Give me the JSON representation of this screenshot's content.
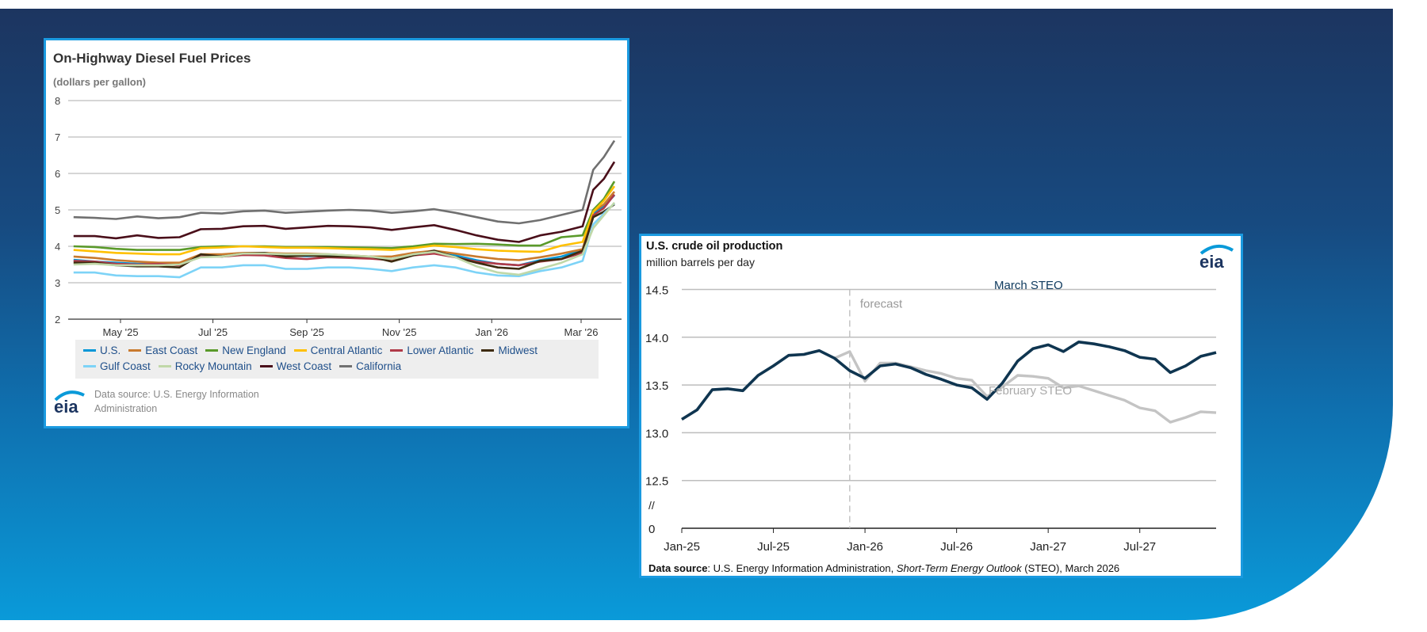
{
  "left_chart_panel": {
    "title": "On-Highway Diesel Fuel Prices",
    "unit": "(dollars per gallon)",
    "source": "Data source: U.S. Energy Information Administration",
    "logo_text": "eia"
  },
  "right_chart_panel": {
    "title": "U.S. crude oil production",
    "unit": "million barrels per day",
    "source_bold": "Data source",
    "source_pre": ": U.S. Energy Information Administration, ",
    "source_italic": "Short-Term Energy Outlook",
    "source_post": " (STEO), March 2026",
    "logo_text": "eia"
  },
  "chart_data": [
    {
      "type": "line",
      "title": "On-Highway Diesel Fuel Prices",
      "ylabel": "(dollars per gallon)",
      "ylim": [
        2,
        8
      ],
      "yticks": [
        "2",
        "3",
        "4",
        "5",
        "6",
        "7",
        "8"
      ],
      "xticks": [
        {
          "label": "May '25",
          "date": "2025-05-01"
        },
        {
          "label": "Jul '25",
          "date": "2025-07-01"
        },
        {
          "label": "Sep '25",
          "date": "2025-09-01"
        },
        {
          "label": "Nov '25",
          "date": "2025-11-01"
        },
        {
          "label": "Jan '26",
          "date": "2026-01-01"
        },
        {
          "label": "Mar '26",
          "date": "2026-03-01"
        }
      ],
      "grid": true,
      "legend_position": "bottom",
      "x": [
        "2025-03-31",
        "2025-04-14",
        "2025-04-28",
        "2025-05-12",
        "2025-05-26",
        "2025-06-09",
        "2025-06-23",
        "2025-07-07",
        "2025-07-21",
        "2025-08-04",
        "2025-08-18",
        "2025-09-01",
        "2025-09-15",
        "2025-09-29",
        "2025-10-13",
        "2025-10-27",
        "2025-11-10",
        "2025-11-24",
        "2025-12-08",
        "2025-12-22",
        "2026-01-05",
        "2026-01-19",
        "2026-02-02",
        "2026-02-16",
        "2026-03-02",
        "2026-03-09",
        "2026-03-16",
        "2026-03-23"
      ],
      "series": [
        {
          "name": "U.S.",
          "color": "#0096d7",
          "values": [
            3.63,
            3.58,
            3.55,
            3.52,
            3.52,
            3.5,
            3.75,
            3.75,
            3.8,
            3.8,
            3.75,
            3.73,
            3.75,
            3.72,
            3.68,
            3.65,
            3.78,
            3.88,
            3.75,
            3.62,
            3.52,
            3.48,
            3.62,
            3.72,
            3.9,
            4.88,
            5.1,
            5.4
          ]
        },
        {
          "name": "East Coast",
          "color": "#c97a2e",
          "values": [
            3.72,
            3.68,
            3.62,
            3.58,
            3.55,
            3.55,
            3.78,
            3.78,
            3.82,
            3.82,
            3.8,
            3.8,
            3.78,
            3.75,
            3.72,
            3.72,
            3.82,
            3.88,
            3.8,
            3.72,
            3.65,
            3.62,
            3.7,
            3.8,
            3.92,
            4.95,
            5.15,
            5.5
          ]
        },
        {
          "name": "New England",
          "color": "#5a9a2a",
          "values": [
            4.0,
            3.98,
            3.93,
            3.9,
            3.9,
            3.9,
            3.98,
            4.0,
            4.0,
            4.0,
            3.98,
            3.98,
            3.98,
            3.97,
            3.96,
            3.95,
            4.0,
            4.07,
            4.06,
            4.07,
            4.05,
            4.02,
            4.02,
            4.25,
            4.3,
            5.0,
            5.3,
            5.78
          ]
        },
        {
          "name": "Central Atlantic",
          "color": "#ffc000",
          "values": [
            3.9,
            3.86,
            3.82,
            3.8,
            3.78,
            3.78,
            3.95,
            3.97,
            4.0,
            3.98,
            3.96,
            3.96,
            3.95,
            3.93,
            3.92,
            3.9,
            3.95,
            4.02,
            3.98,
            3.92,
            3.88,
            3.86,
            3.85,
            4.02,
            4.12,
            4.95,
            5.25,
            5.65
          ]
        },
        {
          "name": "Lower Atlantic",
          "color": "#b03a48",
          "values": [
            3.6,
            3.58,
            3.52,
            3.5,
            3.52,
            3.48,
            3.72,
            3.72,
            3.76,
            3.75,
            3.68,
            3.65,
            3.7,
            3.68,
            3.66,
            3.62,
            3.75,
            3.8,
            3.7,
            3.58,
            3.52,
            3.48,
            3.58,
            3.65,
            3.82,
            4.85,
            5.05,
            5.42
          ]
        },
        {
          "name": "Midwest",
          "color": "#3d2b10",
          "values": [
            3.55,
            3.55,
            3.48,
            3.45,
            3.45,
            3.42,
            3.78,
            3.72,
            3.8,
            3.82,
            3.72,
            3.75,
            3.72,
            3.72,
            3.72,
            3.58,
            3.75,
            3.88,
            3.7,
            3.55,
            3.42,
            3.38,
            3.6,
            3.65,
            3.88,
            4.8,
            4.95,
            5.15
          ]
        },
        {
          "name": "Gulf Coast",
          "color": "#7dd3f7",
          "values": [
            3.28,
            3.28,
            3.2,
            3.18,
            3.18,
            3.15,
            3.42,
            3.42,
            3.48,
            3.48,
            3.38,
            3.38,
            3.42,
            3.42,
            3.38,
            3.32,
            3.42,
            3.48,
            3.42,
            3.28,
            3.2,
            3.18,
            3.32,
            3.42,
            3.6,
            4.6,
            4.9,
            5.18
          ]
        },
        {
          "name": "Rocky Mountain",
          "color": "#c0d8a8",
          "values": [
            3.5,
            3.52,
            3.48,
            3.48,
            3.48,
            3.5,
            3.7,
            3.72,
            3.8,
            3.8,
            3.78,
            3.78,
            3.78,
            3.75,
            3.72,
            3.65,
            3.78,
            3.85,
            3.7,
            3.45,
            3.28,
            3.22,
            3.38,
            3.55,
            3.78,
            4.5,
            4.85,
            5.2
          ]
        },
        {
          "name": "West Coast",
          "color": "#4a0f1a",
          "values": [
            4.28,
            4.28,
            4.22,
            4.3,
            4.23,
            4.25,
            4.47,
            4.48,
            4.55,
            4.56,
            4.48,
            4.52,
            4.56,
            4.55,
            4.52,
            4.45,
            4.52,
            4.58,
            4.45,
            4.3,
            4.18,
            4.12,
            4.3,
            4.4,
            4.55,
            5.55,
            5.85,
            6.32
          ]
        },
        {
          "name": "California",
          "color": "#707070",
          "values": [
            4.8,
            4.78,
            4.75,
            4.82,
            4.77,
            4.8,
            4.92,
            4.9,
            4.96,
            4.98,
            4.92,
            4.95,
            4.98,
            5.0,
            4.98,
            4.92,
            4.96,
            5.02,
            4.92,
            4.8,
            4.68,
            4.63,
            4.72,
            4.86,
            5.0,
            6.1,
            6.45,
            6.9
          ]
        }
      ]
    },
    {
      "type": "line",
      "title": "U.S. crude oil production",
      "ylabel": "million barrels per day",
      "ylim": [
        12.5,
        14.5
      ],
      "y_axis_break": true,
      "yticks": [
        "12.5",
        "13.0",
        "13.5",
        "14.0",
        "14.5"
      ],
      "ybreak_label": "//",
      "yzero_label": "0",
      "xticks": [
        {
          "label": "Jan-25",
          "index": 0
        },
        {
          "label": "Jul-25",
          "index": 6
        },
        {
          "label": "Jan-26",
          "index": 12
        },
        {
          "label": "Jul-26",
          "index": 18
        },
        {
          "label": "Jan-27",
          "index": 24
        },
        {
          "label": "Jul-27",
          "index": 30
        }
      ],
      "x_range": "Jan-25 to Dec-27 (monthly)",
      "forecast_start_index": 11,
      "forecast_label": "forecast",
      "grid": true,
      "series": [
        {
          "name": "February STEO",
          "color": "#c4c4c4",
          "values": [
            13.14,
            13.24,
            13.45,
            13.46,
            13.44,
            13.6,
            13.7,
            13.81,
            13.82,
            13.86,
            13.78,
            13.85,
            13.54,
            13.73,
            13.73,
            13.69,
            13.65,
            13.62,
            13.57,
            13.55,
            13.38,
            13.48,
            13.6,
            13.59,
            13.57,
            13.47,
            13.49,
            13.44,
            13.39,
            13.34,
            13.26,
            13.23,
            13.11,
            13.16,
            13.22,
            13.21
          ]
        },
        {
          "name": "March STEO",
          "color": "#0f3550",
          "values": [
            13.14,
            13.24,
            13.45,
            13.46,
            13.44,
            13.6,
            13.7,
            13.81,
            13.82,
            13.86,
            13.78,
            13.65,
            13.57,
            13.7,
            13.72,
            13.68,
            13.61,
            13.56,
            13.5,
            13.47,
            13.35,
            13.52,
            13.75,
            13.88,
            13.92,
            13.85,
            13.95,
            13.93,
            13.9,
            13.86,
            13.79,
            13.77,
            13.63,
            13.7,
            13.8,
            13.84
          ]
        }
      ]
    }
  ]
}
